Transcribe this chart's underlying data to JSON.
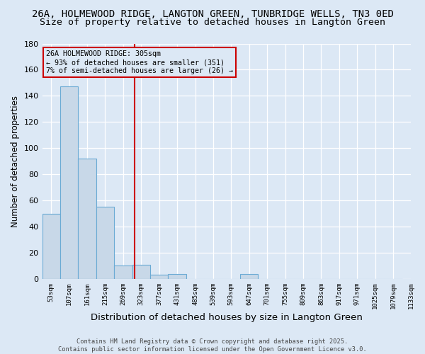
{
  "title1": "26A, HOLMEWOOD RIDGE, LANGTON GREEN, TUNBRIDGE WELLS, TN3 0ED",
  "title2": "Size of property relative to detached houses in Langton Green",
  "xlabel": "Distribution of detached houses by size in Langton Green",
  "ylabel": "Number of detached properties",
  "bin_labels": [
    "53sqm",
    "107sqm",
    "161sqm",
    "215sqm",
    "269sqm",
    "323sqm",
    "377sqm",
    "431sqm",
    "485sqm",
    "539sqm",
    "593sqm",
    "647sqm",
    "701sqm",
    "755sqm",
    "809sqm",
    "863sqm",
    "917sqm",
    "971sqm",
    "1025sqm",
    "1079sqm",
    "1133sqm"
  ],
  "bar_heights": [
    50,
    147,
    92,
    55,
    10,
    11,
    3,
    4,
    0,
    0,
    0,
    4,
    0,
    0,
    0,
    0,
    0,
    0,
    0,
    0
  ],
  "bar_color": "#c8d8e8",
  "bar_edge_color": "#6aaad4",
  "ylim": [
    0,
    180
  ],
  "yticks": [
    0,
    20,
    40,
    60,
    80,
    100,
    120,
    140,
    160,
    180
  ],
  "vline_color": "#cc0000",
  "annotation_line1": "26A HOLMEWOOD RIDGE: 305sqm",
  "annotation_line2": "← 93% of detached houses are smaller (351)",
  "annotation_line3": "7% of semi-detached houses are larger (26) →",
  "annotation_box_color": "#cc0000",
  "footer1": "Contains HM Land Registry data © Crown copyright and database right 2025.",
  "footer2": "Contains public sector information licensed under the Open Government Licence v3.0.",
  "bg_color": "#dce8f5",
  "grid_color": "#ffffff",
  "title1_fontsize": 10,
  "title2_fontsize": 9.5,
  "xlabel_fontsize": 9.5,
  "ylabel_fontsize": 8.5,
  "vline_x": 4.63
}
